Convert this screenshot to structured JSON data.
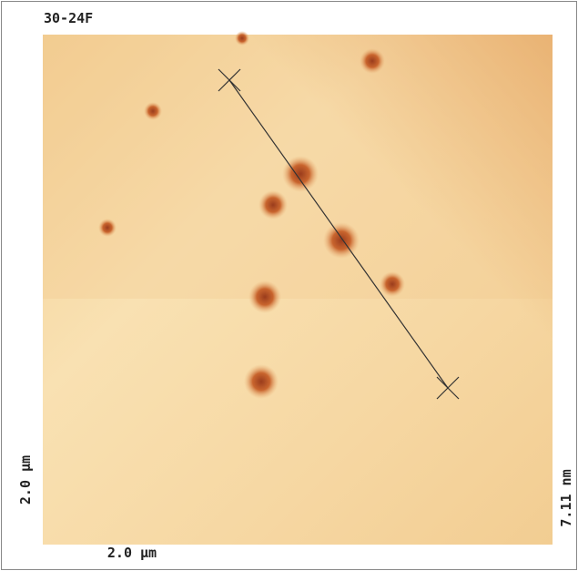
{
  "header": {
    "title": "30-24F"
  },
  "axes": {
    "left_label": "2.0 µm",
    "bottom_label": "2.0 µm",
    "right_label": "7.11 nm"
  }
}
